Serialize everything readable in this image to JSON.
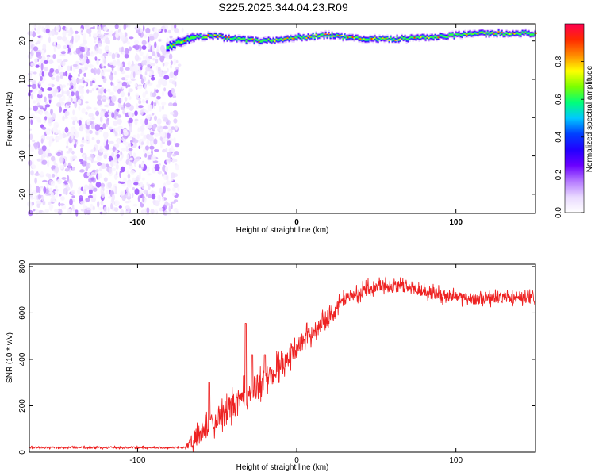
{
  "title": "S225.2025.344.04.23.R09",
  "chart_data": [
    {
      "type": "heatmap",
      "name": "spectrogram",
      "title": "S225.2025.344.04.23.R09",
      "xlabel": "Height of straight line (km)",
      "ylabel": "Frequency (Hz)",
      "xlim": [
        -168,
        150
      ],
      "ylim": [
        -25,
        24.5
      ],
      "xticks": [
        -100,
        0,
        100
      ],
      "yticks": [
        -20,
        -10,
        0,
        10,
        20
      ],
      "colorbar": {
        "label": "Normalized spectral amplitude",
        "range": [
          0,
          1
        ],
        "ticks": [
          0.0,
          0.2,
          0.4,
          0.6,
          0.8
        ],
        "tick_labels": [
          "0.0",
          "0.2",
          "0.4",
          "0.6",
          "0.8"
        ],
        "colors": [
          "#ffffff",
          "#e9d9ff",
          "#b478ff",
          "#6a00ff",
          "#2200ff",
          "#0040ff",
          "#00c8ff",
          "#00ff7a",
          "#7cff00",
          "#ffff00",
          "#ff8a00",
          "#ff2a00",
          "#ff0050"
        ]
      },
      "noise_region": {
        "x_range": [
          -168,
          -75
        ],
        "freq_range": [
          -25,
          24
        ],
        "amplitude_range": [
          0.02,
          0.2
        ]
      },
      "signal_band": {
        "start_km": -82,
        "end_km": 150,
        "freq_points": [
          [
            -82,
            18.5
          ],
          [
            -70,
            20.5
          ],
          [
            -55,
            21.5
          ],
          [
            -40,
            20.5
          ],
          [
            -20,
            20.0
          ],
          [
            0,
            21.0
          ],
          [
            20,
            21.5
          ],
          [
            40,
            20.5
          ],
          [
            60,
            20.5
          ],
          [
            80,
            21.0
          ],
          [
            100,
            21.5
          ],
          [
            120,
            22.0
          ],
          [
            150,
            22.0
          ]
        ],
        "peak_amplitude_range": [
          0.55,
          0.95
        ]
      }
    },
    {
      "type": "line",
      "name": "snr",
      "xlabel": "Height of straight line (km)",
      "ylabel": "SNR (10 * v/v)",
      "xlim": [
        -168,
        150
      ],
      "ylim": [
        0,
        810
      ],
      "xticks": [
        -100,
        0,
        100
      ],
      "yticks": [
        0,
        200,
        400,
        600,
        800
      ],
      "color": "#ee2222",
      "series": [
        {
          "name": "SNR",
          "trend": [
            [
              -168,
              20
            ],
            [
              -70,
              20
            ],
            [
              -65,
              50
            ],
            [
              -50,
              150
            ],
            [
              -30,
              250
            ],
            [
              -10,
              380
            ],
            [
              10,
              520
            ],
            [
              30,
              660
            ],
            [
              50,
              720
            ],
            [
              70,
              710
            ],
            [
              90,
              680
            ],
            [
              110,
              660
            ],
            [
              130,
              665
            ],
            [
              150,
              660
            ]
          ],
          "noise_amplitude": [
            [
              -168,
              7
            ],
            [
              -70,
              7
            ],
            [
              -65,
              70
            ],
            [
              -30,
              100
            ],
            [
              0,
              70
            ],
            [
              30,
              45
            ],
            [
              150,
              40
            ]
          ],
          "spikes": [
            [
              -55,
              300
            ],
            [
              -32,
              555
            ],
            [
              -28,
              420
            ],
            [
              -20,
              420
            ]
          ]
        }
      ]
    }
  ]
}
